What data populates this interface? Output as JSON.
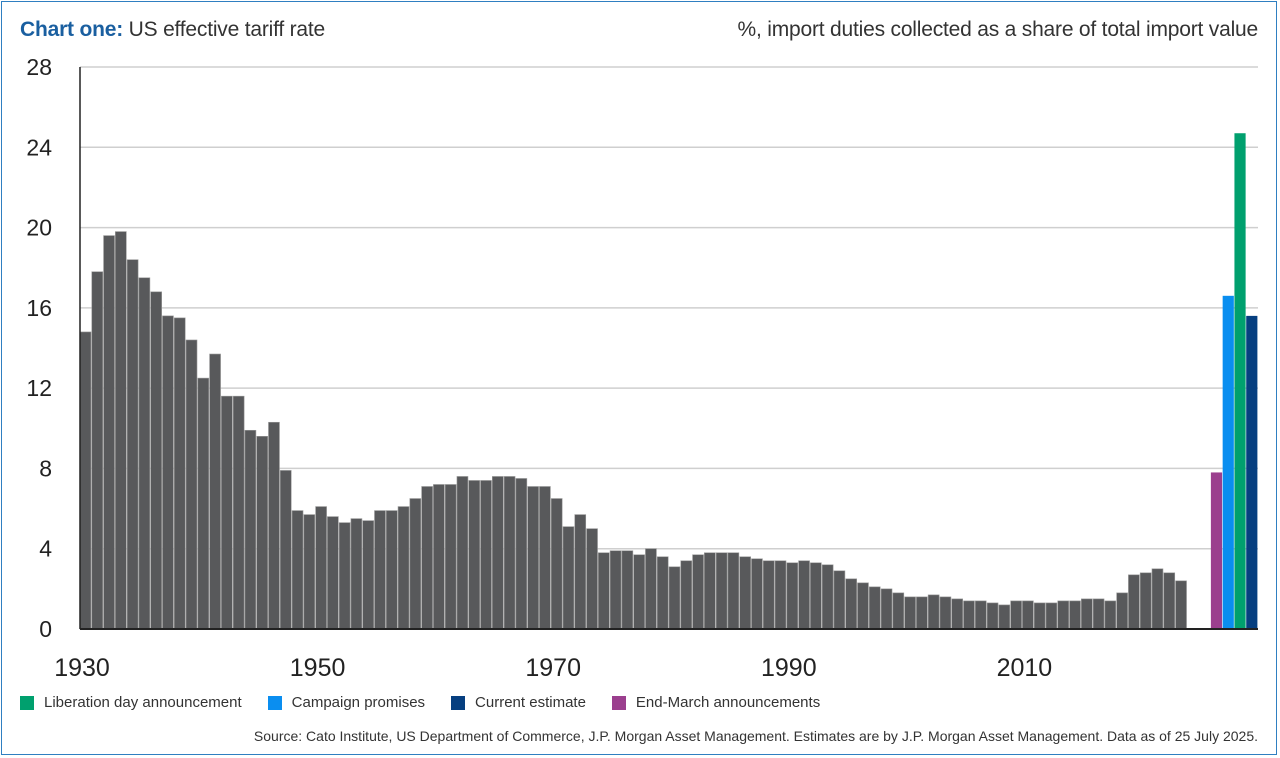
{
  "header": {
    "title_lead": "Chart one:",
    "title_rest": "US effective tariff rate",
    "subtitle": "%, import duties collected as a share of total import value"
  },
  "source": "Source: Cato Institute, US Department of Commerce, J.P. Morgan Asset Management. Estimates are by J.P. Morgan Asset Management. Data as of 25 July 2025.",
  "chart_data": {
    "type": "bar",
    "title": "US effective tariff rate",
    "ylabel": "%, import duties collected as a share of total import value",
    "xlabel": "",
    "ylim": [
      0,
      28
    ],
    "yticks": [
      0,
      4,
      8,
      12,
      16,
      20,
      24,
      28
    ],
    "xtick_labels": [
      "1930",
      "1950",
      "1970",
      "1990",
      "2010"
    ],
    "grid": true,
    "historical": {
      "name": "Historical",
      "color": "#58595b",
      "start_year": 1930,
      "values": [
        14.8,
        17.8,
        19.6,
        19.8,
        18.4,
        17.5,
        16.8,
        15.6,
        15.5,
        14.4,
        12.5,
        13.7,
        11.6,
        11.6,
        9.9,
        9.6,
        10.3,
        7.9,
        5.9,
        5.7,
        6.1,
        5.6,
        5.3,
        5.5,
        5.4,
        5.9,
        5.9,
        6.1,
        6.5,
        7.1,
        7.2,
        7.2,
        7.6,
        7.4,
        7.4,
        7.6,
        7.6,
        7.5,
        7.1,
        7.1,
        6.5,
        5.1,
        5.7,
        5.0,
        3.8,
        3.9,
        3.9,
        3.7,
        4.0,
        3.6,
        3.1,
        3.4,
        3.7,
        3.8,
        3.8,
        3.8,
        3.6,
        3.5,
        3.4,
        3.4,
        3.3,
        3.4,
        3.3,
        3.2,
        2.9,
        2.5,
        2.3,
        2.1,
        2.0,
        1.8,
        1.6,
        1.6,
        1.7,
        1.6,
        1.5,
        1.4,
        1.4,
        1.3,
        1.2,
        1.4,
        1.4,
        1.3,
        1.3,
        1.4,
        1.4,
        1.5,
        1.5,
        1.4,
        1.8,
        2.7,
        2.8,
        3.0,
        2.8,
        2.4
      ]
    },
    "scenarios": [
      {
        "name": "End-March announcements",
        "value": 7.8,
        "color": "#9b3f8e"
      },
      {
        "name": "Campaign promises",
        "value": 16.6,
        "color": "#0a8ef0"
      },
      {
        "name": "Liberation day announcement",
        "value": 24.7,
        "color": "#00a06e"
      },
      {
        "name": "Current estimate",
        "value": 15.6,
        "color": "#063f80"
      }
    ],
    "legend": [
      {
        "label": "Liberation day announcement",
        "color": "#00a06e"
      },
      {
        "label": "Campaign promises",
        "color": "#0a8ef0"
      },
      {
        "label": "Current estimate",
        "color": "#063f80"
      },
      {
        "label": "End-March announcements",
        "color": "#9b3f8e"
      }
    ],
    "legend_position": "bottom-left"
  }
}
